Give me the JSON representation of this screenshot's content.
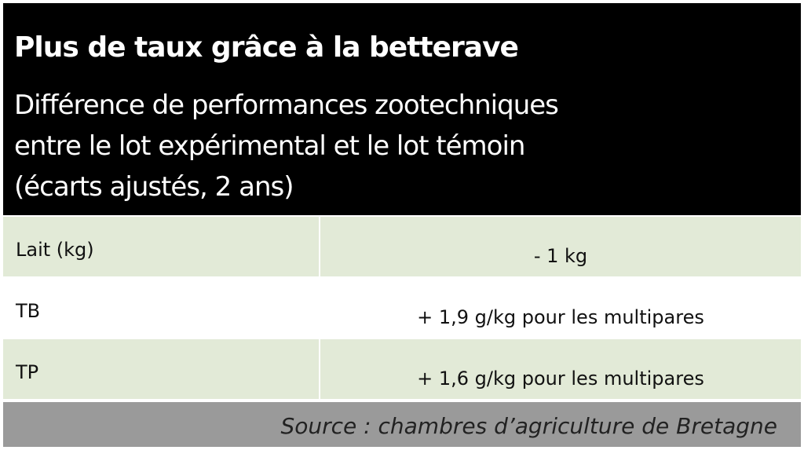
{
  "header": {
    "title": "Plus de taux grâce à la betterave",
    "subtitle": [
      "Différence de performances zootechniques",
      "entre le lot expérimental et le lot témoin",
      "(écarts ajustés, 2 ans)"
    ]
  },
  "table": {
    "rows": [
      [
        "Lait (kg)",
        "- 1 kg"
      ],
      [
        "TB",
        "+ 1,9 g/kg pour les multipares"
      ],
      [
        "TP",
        "+ 1,6 g/kg pour les multipares"
      ]
    ]
  },
  "source": "Source : chambres d’agriculture de Bretagne"
}
